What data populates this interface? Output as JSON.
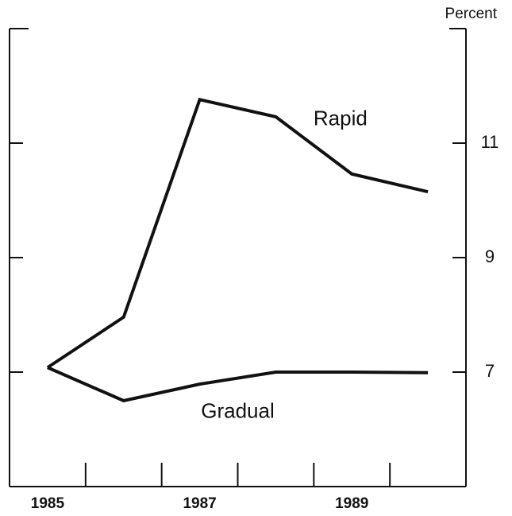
{
  "chart_data": {
    "type": "line",
    "y_label": "Percent",
    "categories": [
      "1985",
      null,
      "1987",
      null,
      "1989",
      null
    ],
    "series": [
      {
        "name": "Rapid",
        "color": "#111111",
        "values": [
          7.08,
          7.96,
          11.76,
          11.46,
          10.46,
          10.15
        ]
      },
      {
        "name": "Gradual",
        "color": "#111111",
        "values": [
          7.08,
          6.5,
          6.79,
          7.0,
          7.0,
          6.99
        ]
      }
    ],
    "ylim": [
      5,
      13
    ],
    "yticks": [
      7,
      9,
      11
    ],
    "y_axis_side": "right"
  }
}
